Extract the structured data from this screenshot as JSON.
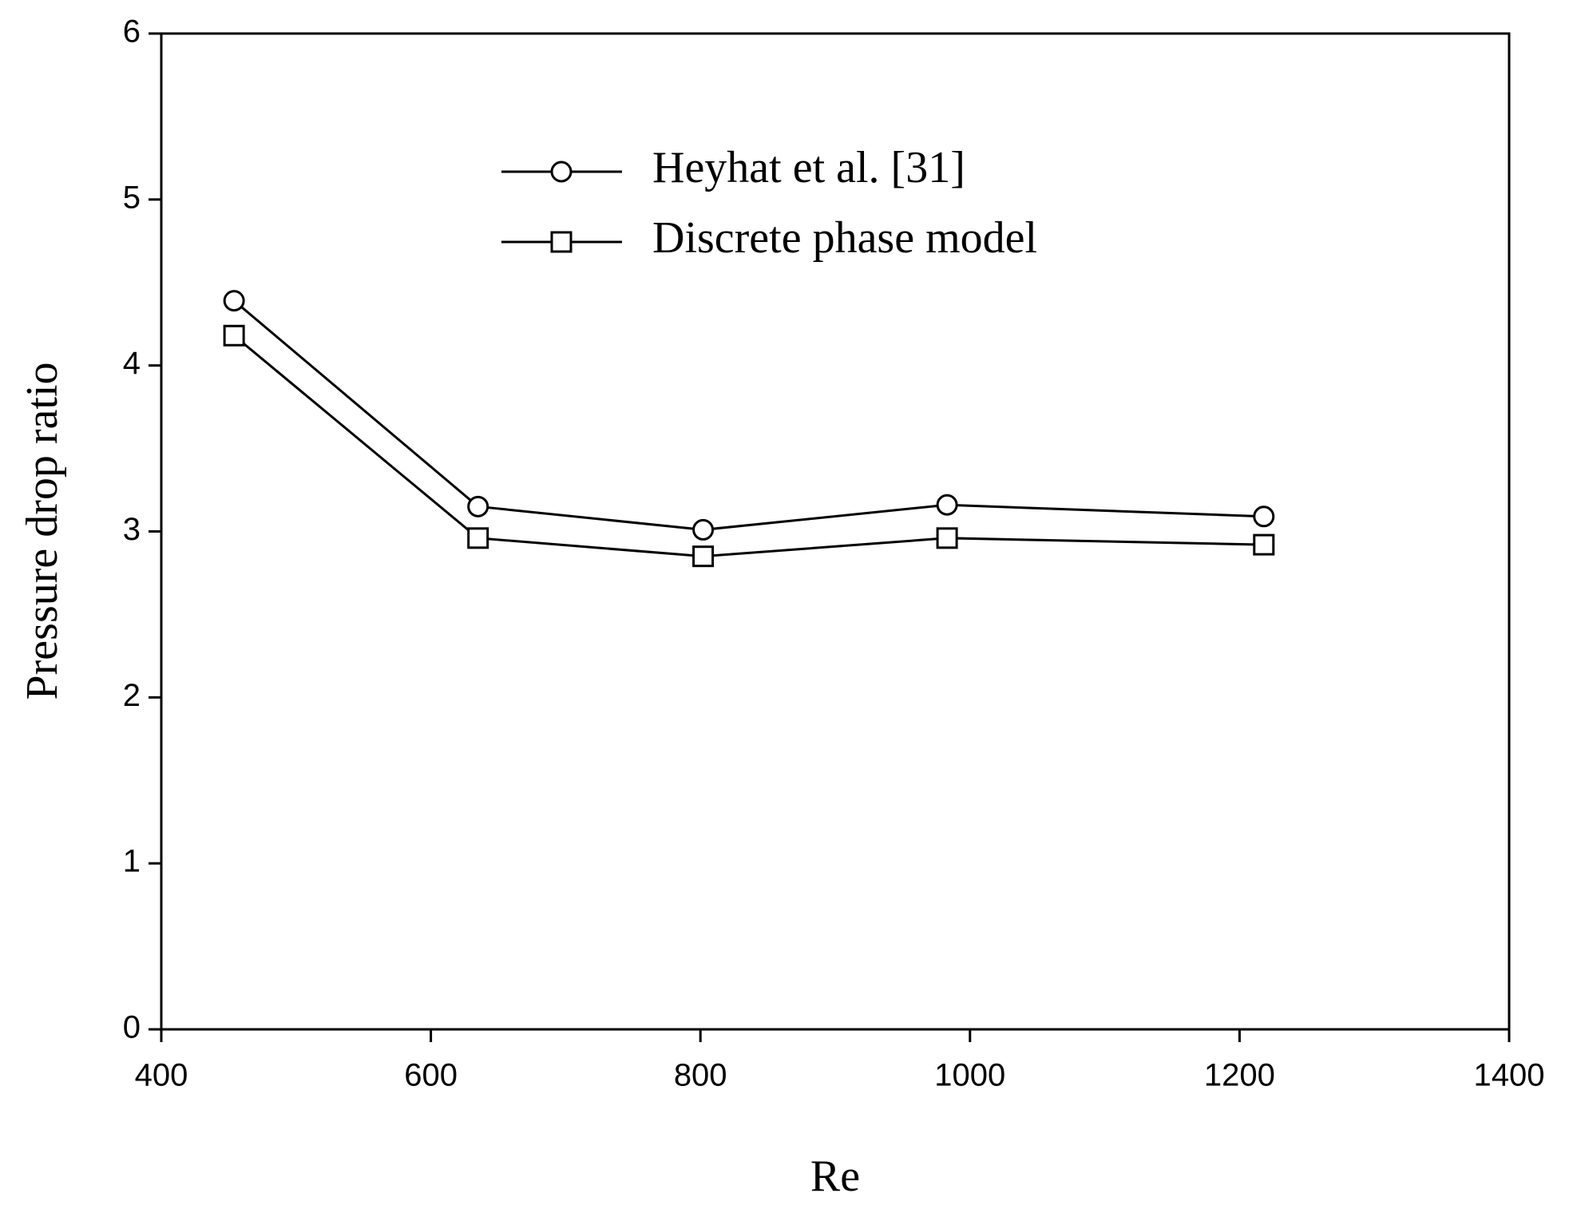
{
  "chart_data": {
    "type": "line",
    "x_label": "Re",
    "y_label": "Pressure drop ratio",
    "x": [
      454,
      635,
      802,
      983,
      1218
    ],
    "series": [
      {
        "name": "Heyhat et al. [31]",
        "color": "#000000",
        "marker": "circle",
        "values": [
          4.39,
          3.15,
          3.01,
          3.16,
          3.09
        ]
      },
      {
        "name": "Discrete phase model",
        "color": "#000000",
        "marker": "square",
        "values": [
          4.18,
          2.96,
          2.85,
          2.96,
          2.92
        ]
      }
    ],
    "xlim": [
      400,
      1400
    ],
    "xticks": [
      400,
      600,
      800,
      1000,
      1200,
      1400
    ],
    "ylim": [
      0,
      6
    ],
    "yticks": [
      0,
      1,
      2,
      3,
      4,
      5,
      6
    ],
    "grid": false,
    "legend": "top-center"
  }
}
